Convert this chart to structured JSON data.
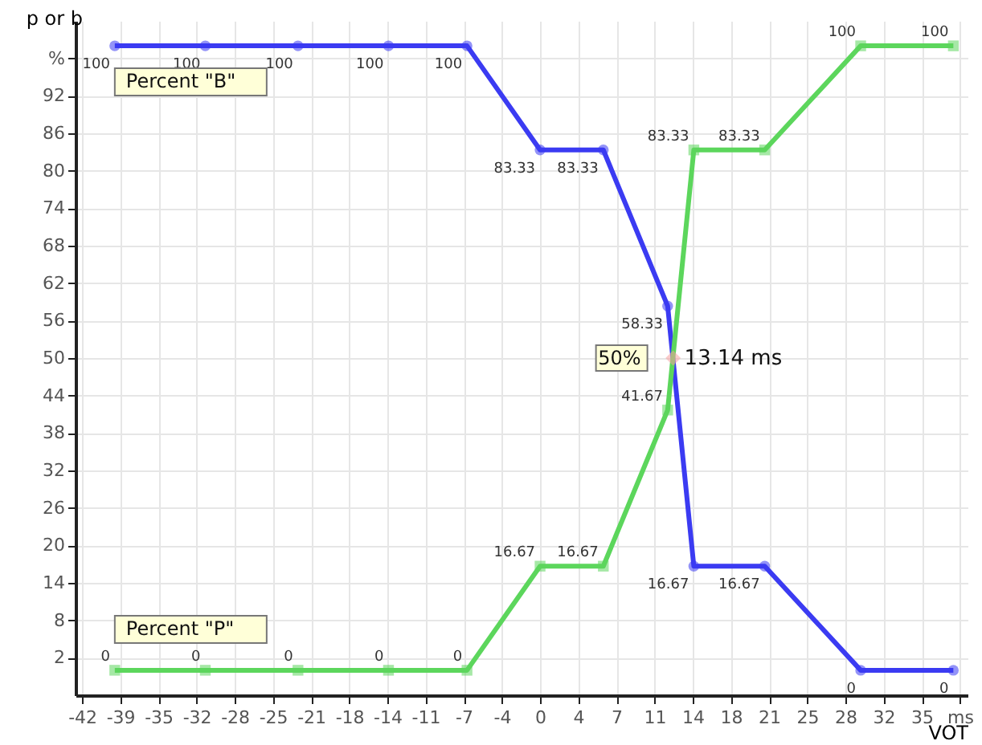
{
  "chart_data": {
    "type": "line",
    "xlabel": "VOT",
    "ylabel": "p or b",
    "x": [
      -39,
      -30.7,
      -22.2,
      -13.9,
      -6.7,
      0,
      5.8,
      11.7,
      14.1,
      20.6,
      29.4,
      37.9
    ],
    "series": [
      {
        "name": "Percent \"B\"",
        "color": "#3b3bf2",
        "marker": "circle",
        "values": [
          100,
          100,
          100,
          100,
          100,
          83.33,
          83.33,
          58.33,
          16.67,
          16.67,
          0,
          0
        ],
        "value_labels": [
          "100",
          "100",
          "100",
          "100",
          "100",
          "83.33",
          "83.33",
          "58.33",
          "16.67",
          "16.67",
          "0",
          "0"
        ]
      },
      {
        "name": "Percent \"P\"",
        "color": "#5cd65c",
        "marker": "square",
        "values": [
          0,
          0,
          0,
          0,
          0,
          16.67,
          16.67,
          41.67,
          83.33,
          83.33,
          100,
          100
        ],
        "value_labels": [
          "0",
          "0",
          "0",
          "0",
          "0",
          "16.67",
          "16.67",
          "41.67",
          "83.33",
          "83.33",
          "100",
          "100"
        ]
      },
      {
        "type": "scatter",
        "color": "#f4a0a0",
        "marker": "diamond",
        "x": [
          12.2
        ],
        "values": [
          50
        ]
      }
    ],
    "annotations": [
      {
        "text": "50%",
        "x": 12.2,
        "y": 50
      },
      {
        "text": "13.14 ms",
        "x": 12.2,
        "y": 50
      }
    ],
    "xlim": [
      -42.6,
      39.2
    ],
    "xticks": [
      -42,
      {
        "value": -38.5,
        "label": "-39"
      },
      -35,
      {
        "value": -31.5,
        "label": "-32"
      },
      -28,
      {
        "value": -24.5,
        "label": "-25"
      },
      -21,
      {
        "value": -17.5,
        "label": "-18"
      },
      -14,
      {
        "value": -10.5,
        "label": "-11"
      },
      -7,
      {
        "value": -3.5,
        "label": "-4"
      },
      0,
      {
        "value": 3.5,
        "label": "4"
      },
      7,
      {
        "value": 10.5,
        "label": "11"
      },
      14,
      {
        "value": 17.5,
        "label": "18"
      },
      21,
      {
        "value": 24.5,
        "label": "25"
      },
      28,
      {
        "value": 31.5,
        "label": "32"
      },
      35,
      {
        "value": 38.5,
        "label": "ms"
      }
    ],
    "ylim": [
      -4,
      104
    ],
    "yticks": [
      2,
      8,
      14,
      20,
      26,
      32,
      38,
      44,
      50,
      56,
      62,
      68,
      74,
      80,
      86,
      92,
      {
        "value": 98,
        "label": "%"
      }
    ],
    "grid": true
  }
}
